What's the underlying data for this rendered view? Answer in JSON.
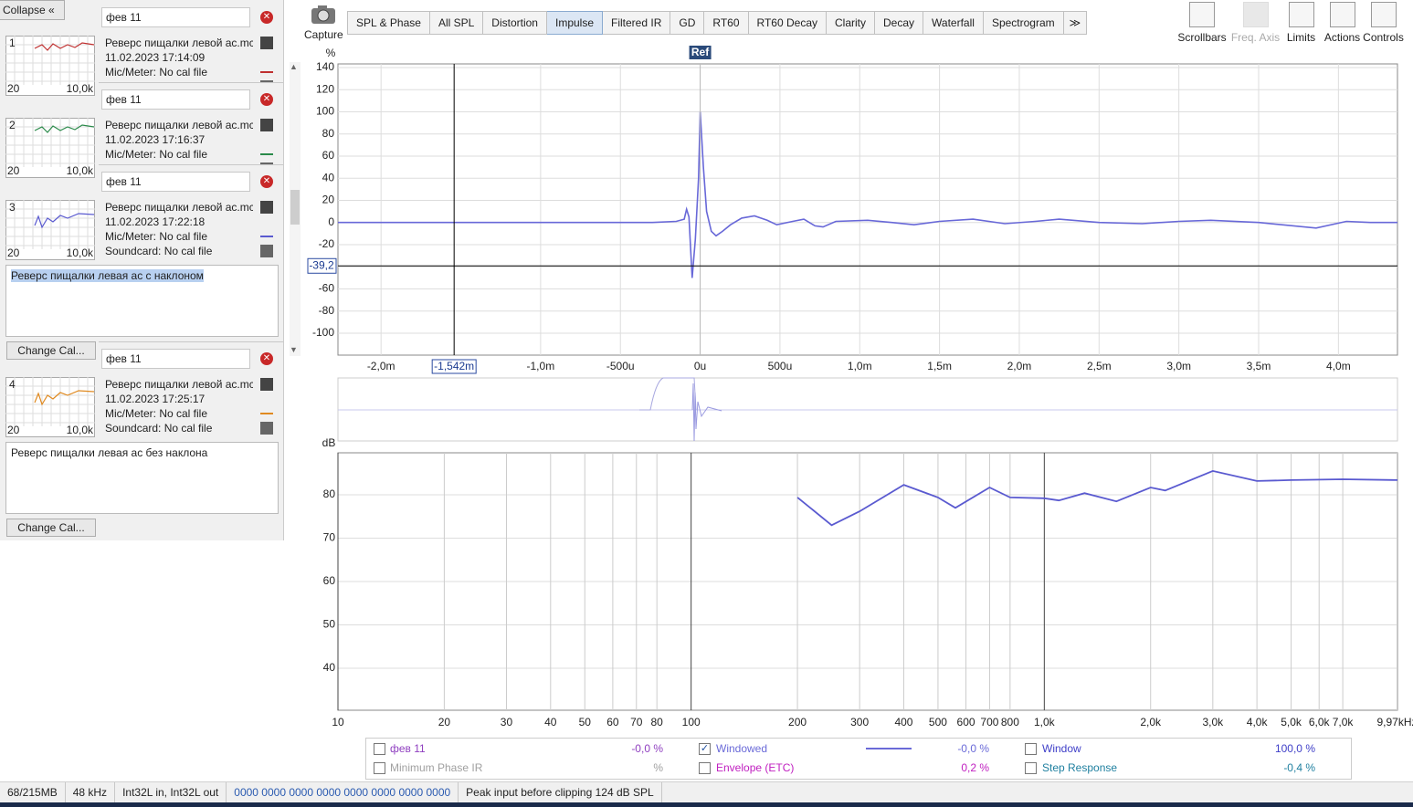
{
  "sidebar": {
    "collapse": "Collapse",
    "change_cal": "Change Cal...",
    "measurements": [
      {
        "index": "1",
        "name": "фев 11",
        "title": "Реверс пищалки левой ас.mc",
        "date": "11.02.2023 17:14:09",
        "mic": "Mic/Meter: No cal file",
        "thumb_min": "20",
        "thumb_max": "10,0k",
        "color": "#c03030"
      },
      {
        "index": "2",
        "name": "фев 11",
        "title": "Реверс пищалки левой ас.mc",
        "date": "11.02.2023 17:16:37",
        "mic": "Mic/Meter: No cal file",
        "thumb_min": "20",
        "thumb_max": "10,0k",
        "color": "#2a8a4a"
      },
      {
        "index": "3",
        "name": "фев 11",
        "title": "Реверс пищалки левой ас.mc",
        "date": "11.02.2023 17:22:18",
        "mic": "Mic/Meter: No cal file",
        "soundcard": "Soundcard: No cal file",
        "thumb_min": "20",
        "thumb_max": "10,0k",
        "color": "#5a5ad0",
        "note": "Реверс пищалки левая ас с наклоном",
        "note_selected": true
      },
      {
        "index": "4",
        "name": "фев 11",
        "title": "Реверс пищалки левой ас.mc",
        "date": "11.02.2023 17:25:17",
        "mic": "Mic/Meter: No cal file",
        "soundcard": "Soundcard: No cal file",
        "thumb_min": "20",
        "thumb_max": "10,0k",
        "color": "#e08a20",
        "note": "Реверс пищалки левая ас без наклона"
      }
    ]
  },
  "toolbar": {
    "capture": "Capture",
    "tabs": [
      {
        "label": "SPL & Phase"
      },
      {
        "label": "All SPL"
      },
      {
        "label": "Distortion"
      },
      {
        "label": "Impulse",
        "selected": true
      },
      {
        "label": "Filtered IR"
      },
      {
        "label": "GD"
      },
      {
        "label": "RT60"
      },
      {
        "label": "RT60 Decay"
      },
      {
        "label": "Clarity"
      },
      {
        "label": "Decay"
      },
      {
        "label": "Waterfall"
      },
      {
        "label": "Spectrogram"
      }
    ],
    "buttons": [
      {
        "label": "Scrollbars"
      },
      {
        "label": "Freq. Axis",
        "disabled": true
      },
      {
        "label": "Limits"
      },
      {
        "label": "Actions"
      },
      {
        "label": "Controls"
      }
    ]
  },
  "impulse_chart": {
    "type": "line",
    "y_unit": "%",
    "grid": true,
    "ylim": [
      -119.8,
      143.3
    ],
    "yticks": [
      -100,
      -80,
      -60,
      -40,
      -20,
      0,
      20,
      40,
      60,
      80,
      100,
      120,
      140
    ],
    "xlim": [
      -2.27,
      4.37
    ],
    "xticks": [
      {
        "value": -2,
        "label": "-2,0m"
      },
      {
        "value": -1,
        "label": "-1,0m"
      },
      {
        "value": -0.5,
        "label": "-500u"
      },
      {
        "value": 0,
        "label": "0u"
      },
      {
        "value": 0.5,
        "label": "500u"
      },
      {
        "value": 1,
        "label": "1,0m"
      },
      {
        "value": 1.5,
        "label": "1,5m"
      },
      {
        "value": 2,
        "label": "2,0m"
      },
      {
        "value": 2.5,
        "label": "2,5m"
      },
      {
        "value": 3,
        "label": "3,0m"
      },
      {
        "value": 3.5,
        "label": "3,5m"
      },
      {
        "value": 4,
        "label": "4,0m"
      }
    ],
    "ref": {
      "value": 0,
      "label": "Ref"
    },
    "cursor": {
      "x": {
        "value": -1.542,
        "label": "-1,542m"
      },
      "y": {
        "value": -39.2,
        "label": "-39,2"
      }
    },
    "series": [
      {
        "color": "#6868d8",
        "x": [
          -2.27,
          -1.0,
          -0.3,
          -0.15,
          -0.1,
          -0.085,
          -0.07,
          -0.05,
          -0.03,
          -0.01,
          0,
          0.02,
          0.04,
          0.07,
          0.1,
          0.14,
          0.19,
          0.26,
          0.34,
          0.42,
          0.48,
          0.58,
          0.65,
          0.72,
          0.77,
          0.85,
          1.05,
          1.2,
          1.34,
          1.5,
          1.71,
          1.91,
          2.1,
          2.25,
          2.5,
          2.77,
          3.0,
          3.2,
          3.5,
          3.86,
          4.05,
          4.2,
          4.37
        ],
        "values": [
          0,
          0,
          0,
          1,
          3,
          12,
          5,
          -50,
          -15,
          40,
          100,
          50,
          10,
          -8,
          -12,
          -8,
          -2,
          4,
          6,
          2,
          -2,
          1,
          3,
          -3,
          -4,
          1,
          2,
          0,
          -2,
          1,
          3,
          -1,
          1,
          3,
          0,
          -1,
          1,
          2,
          0,
          -5,
          1,
          0,
          0
        ]
      }
    ]
  },
  "frequency_chart": {
    "type": "line",
    "y_unit": "dB",
    "log_x": true,
    "grid": true,
    "ylim": [
      30.3,
      89.7
    ],
    "yticks": [
      40,
      50,
      60,
      70,
      80
    ],
    "xlim": [
      10,
      10000
    ],
    "xticks": [
      10,
      20,
      30,
      40,
      50,
      60,
      70,
      80,
      100,
      200,
      300,
      400,
      500,
      600,
      700,
      800,
      {
        "value": 1000,
        "label": "1,0k"
      },
      {
        "value": 2000,
        "label": "2,0k"
      },
      {
        "value": 3000,
        "label": "3,0k"
      },
      {
        "value": 4000,
        "label": "4,0k"
      },
      {
        "value": 5000,
        "label": "5,0k"
      },
      {
        "value": 6000,
        "label": "6,0k"
      },
      {
        "value": 7000,
        "label": "7,0k"
      },
      {
        "value": 9970,
        "label": "9,97kHz"
      }
    ],
    "series": [
      {
        "color": "#5a5ad0",
        "x": [
          200,
          250,
          300,
          400,
          500,
          560,
          700,
          800,
          1000,
          1100,
          1300,
          1600,
          2000,
          2200,
          3000,
          4000,
          5000,
          7000,
          10000
        ],
        "values": [
          79.4,
          73,
          76.2,
          82.3,
          79.4,
          77,
          81.7,
          79.4,
          79.2,
          78.7,
          80.4,
          78.5,
          81.7,
          81,
          85.5,
          83.2,
          83.4,
          83.6,
          83.4
        ]
      }
    ]
  },
  "legend": [
    [
      {
        "name": "фев 11",
        "value": "-0,0 %",
        "color": "#9040c0",
        "checked": false
      },
      {
        "name": "Windowed",
        "value": "-0,0 %",
        "color": "#6a6ad8",
        "checked": true,
        "line": true
      },
      {
        "name": "Window",
        "value": "100,0 %",
        "color": "#4040c8",
        "checked": false
      }
    ],
    [
      {
        "name": "Minimum Phase IR",
        "value": "%",
        "color": "#a0a0a0",
        "checked": false
      },
      {
        "name": "Envelope (ETC)",
        "value": "0,2 %",
        "color": "#c020c0",
        "checked": false
      },
      {
        "name": "Step Response",
        "value": "-0,4 %",
        "color": "#2080a0",
        "checked": false
      }
    ]
  ],
  "status": [
    "68/215MB",
    "48 kHz",
    "Int32L in, Int32L out",
    "0000 0000  0000 0000  0000 0000  0000 0000",
    "Peak input before clipping 124 dB SPL"
  ]
}
